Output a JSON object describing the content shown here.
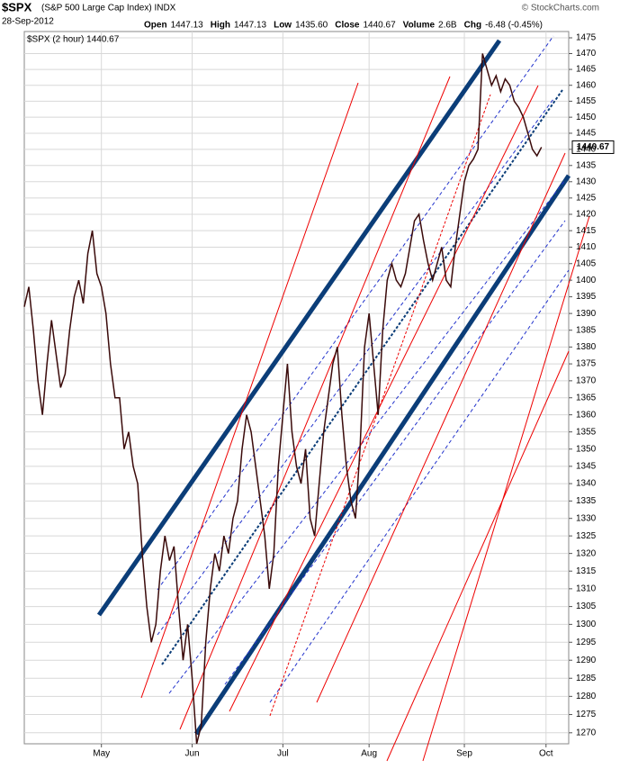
{
  "chart_data": {
    "type": "line",
    "title": "$SPX",
    "subtitle": "(S&P 500 Large Cap Index) INDX",
    "source": "© StockCharts.com",
    "date": "28-Sep-2012",
    "stats": [
      {
        "label": "Open",
        "value": "1447.13"
      },
      {
        "label": "High",
        "value": "1447.13"
      },
      {
        "label": "Low",
        "value": "1435.60"
      },
      {
        "label": "Close",
        "value": "1440.67"
      },
      {
        "label": "Volume",
        "value": "2.6B"
      },
      {
        "label": "Chg",
        "value": "-6.48 (-0.45%)"
      }
    ],
    "legend_text": "$SPX (2 hour) 1440.67",
    "last_value": 1440.67,
    "log_scale": true,
    "grid": true,
    "x": [
      0,
      1,
      2,
      3,
      4,
      5,
      6,
      7,
      8,
      9,
      10,
      11,
      12,
      13,
      14,
      15,
      16,
      17,
      18,
      19,
      20,
      21,
      22,
      23,
      24,
      25,
      26,
      27,
      28,
      29,
      30,
      31,
      32,
      33,
      34,
      35,
      36,
      37,
      38,
      39,
      40,
      41,
      42,
      43,
      44,
      45,
      46,
      47,
      48,
      49,
      50,
      51,
      52,
      53,
      54,
      55,
      56,
      57,
      58,
      59,
      60,
      61,
      62,
      63,
      64,
      65,
      66,
      67,
      68,
      69,
      70,
      71,
      72,
      73,
      74,
      75,
      76,
      77,
      78,
      79,
      80,
      81,
      82,
      83,
      84,
      85,
      86,
      87,
      88,
      89,
      90,
      91,
      92,
      93,
      94,
      95,
      96,
      97,
      98,
      99,
      100,
      101,
      102,
      103,
      104,
      105,
      106,
      107,
      108,
      109,
      110,
      111,
      112,
      113,
      114
    ],
    "series": [
      {
        "name": "$SPX",
        "color": "#3a0a0a",
        "values": [
          1392,
          1398,
          1385,
          1370,
          1360,
          1375,
          1388,
          1378,
          1368,
          1372,
          1385,
          1395,
          1400,
          1393,
          1408,
          1415,
          1402,
          1398,
          1390,
          1375,
          1365,
          1365,
          1350,
          1355,
          1345,
          1340,
          1320,
          1305,
          1295,
          1300,
          1315,
          1325,
          1318,
          1322,
          1305,
          1290,
          1300,
          1285,
          1267,
          1272,
          1295,
          1310,
          1320,
          1315,
          1325,
          1320,
          1330,
          1335,
          1350,
          1360,
          1355,
          1345,
          1335,
          1325,
          1310,
          1320,
          1345,
          1360,
          1375,
          1355,
          1345,
          1340,
          1350,
          1330,
          1325,
          1340,
          1355,
          1365,
          1375,
          1380,
          1360,
          1345,
          1335,
          1330,
          1350,
          1380,
          1390,
          1375,
          1360,
          1385,
          1400,
          1405,
          1400,
          1398,
          1402,
          1410,
          1418,
          1420,
          1412,
          1405,
          1400,
          1405,
          1410,
          1400,
          1398,
          1410,
          1420,
          1430,
          1435,
          1437,
          1440,
          1470,
          1465,
          1460,
          1463,
          1458,
          1462,
          1460,
          1455,
          1453,
          1450,
          1445,
          1440,
          1438,
          1440.67
        ]
      }
    ],
    "xlim": [
      0,
      120
    ],
    "xticks": [
      {
        "value": 17,
        "label": "May"
      },
      {
        "value": 37,
        "label": "Jun"
      },
      {
        "value": 57,
        "label": "Jul"
      },
      {
        "value": 76,
        "label": "Aug"
      },
      {
        "value": 97,
        "label": "Sep"
      },
      {
        "value": 115,
        "label": "Oct"
      }
    ],
    "ylim": [
      1267,
      1477
    ],
    "yticks": [
      1270,
      1275,
      1280,
      1285,
      1290,
      1295,
      1300,
      1305,
      1310,
      1315,
      1320,
      1325,
      1330,
      1335,
      1340,
      1345,
      1350,
      1355,
      1360,
      1365,
      1370,
      1375,
      1380,
      1385,
      1390,
      1395,
      1400,
      1405,
      1410,
      1415,
      1420,
      1425,
      1430,
      1435,
      1440,
      1445,
      1450,
      1455,
      1460,
      1465,
      1470,
      1475
    ]
  }
}
